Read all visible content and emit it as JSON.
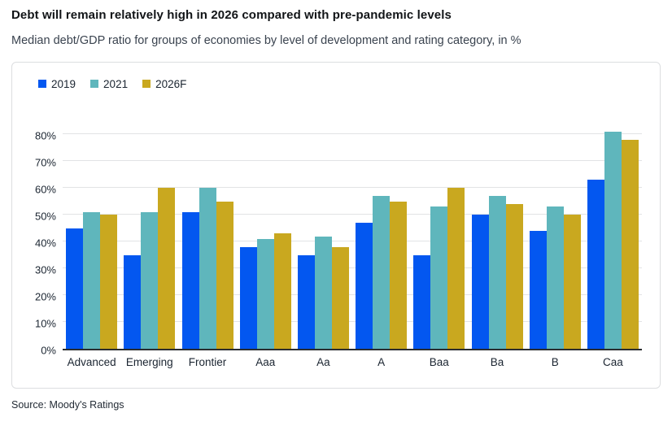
{
  "header": {
    "title": "Debt will remain relatively high in 2026 compared with pre-pandemic levels",
    "subtitle": "Median debt/GDP ratio for groups of economies by level of development and rating category, in %"
  },
  "colors": {
    "series_2019": "#0357f0",
    "series_2021": "#5fb6bc",
    "series_2026f": "#c9a81f",
    "gridline": "#e2e3e5",
    "axis_baseline": "#2a2c2f"
  },
  "chart_data": {
    "type": "bar",
    "title": "Debt will remain relatively high in 2026 compared with pre-pandemic levels",
    "subtitle": "Median debt/GDP ratio for groups of economies by level of development and rating category, in %",
    "categories": [
      "Advanced",
      "Emerging",
      "Frontier",
      "Aaa",
      "Aa",
      "A",
      "Baa",
      "Ba",
      "B",
      "Caa"
    ],
    "series": [
      {
        "name": "2019",
        "color": "#0357f0",
        "values": [
          45,
          35,
          51,
          38,
          35,
          47,
          35,
          50,
          44,
          63
        ]
      },
      {
        "name": "2021",
        "color": "#5fb6bc",
        "values": [
          51,
          51,
          60,
          41,
          42,
          57,
          53,
          57,
          53,
          81
        ]
      },
      {
        "name": "2026F",
        "color": "#c9a81f",
        "values": [
          50,
          60,
          55,
          43,
          38,
          55,
          60,
          54,
          50,
          78
        ]
      }
    ],
    "xlabel": "",
    "ylabel": "",
    "y_ticks": [
      0,
      10,
      20,
      30,
      40,
      50,
      60,
      70,
      80
    ],
    "y_tick_labels": [
      "0%",
      "10%",
      "20%",
      "30%",
      "40%",
      "50%",
      "60%",
      "70%",
      "80%"
    ],
    "ylim": [
      0,
      88
    ],
    "grid": true,
    "legend_position": "top-left"
  },
  "source": "Source: Moody's Ratings"
}
